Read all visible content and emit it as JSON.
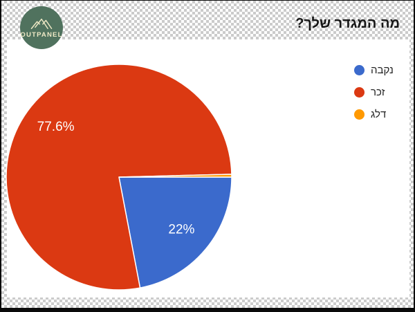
{
  "logo": {
    "brand": "OUTPANEL",
    "bg_color": "#50725E",
    "text_color": "#EFE9C6"
  },
  "header": {
    "title": "מה המגדר שלך?"
  },
  "chart_data": {
    "type": "pie",
    "title": "מה המגדר שלך?",
    "labels": [
      "נקבה",
      "זכר",
      "דלג"
    ],
    "values": [
      22,
      77.6,
      0.4
    ],
    "unit": "percent",
    "colors": [
      "#3B6ACC",
      "#DB3912",
      "#FF9900"
    ],
    "slice_labels": [
      "22%",
      "77.6%",
      ""
    ],
    "slice_label_color": "#ffffff",
    "legend_position": "right",
    "start_at": "3-oclock",
    "direction": "clockwise",
    "slice_border_color": "#ffffff"
  }
}
